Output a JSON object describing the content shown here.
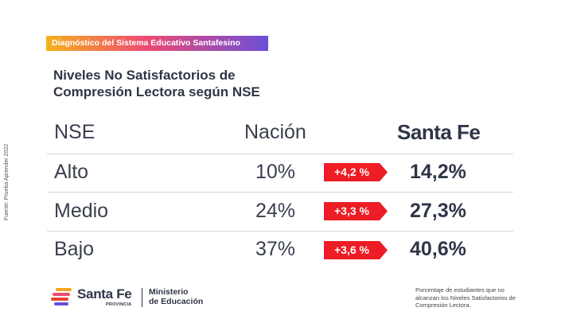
{
  "tag": "Diagnóstico del Sistema Educativo Santafesino",
  "title_lines": [
    "Niveles No Satisfactorios de",
    "Compresión Lectora según NSE"
  ],
  "source": "Fuente: Prueba Aprender 2022",
  "headers": {
    "nse": "NSE",
    "nacion": "Nación",
    "santa_fe": "Santa Fe"
  },
  "rows": [
    {
      "nse": "Alto",
      "nacion": "10%",
      "diff": "+4,2 %",
      "santa_fe": "14,2%"
    },
    {
      "nse": "Medio",
      "nacion": "24%",
      "diff": "+3,3 %",
      "santa_fe": "27,3%"
    },
    {
      "nse": "Bajo",
      "nacion": "37%",
      "diff": "+3,6 %",
      "santa_fe": "40,6%"
    }
  ],
  "badge_color": "#ee1c24",
  "logo": {
    "name": "Santa Fe",
    "sub": "PROVINCIA",
    "ministry_lines": [
      "Ministerio",
      "de Educación"
    ]
  },
  "note": "Porcentaje de estudiantes que no alcanzan los Niveles Satisfactorios de Compresión Lectora."
}
